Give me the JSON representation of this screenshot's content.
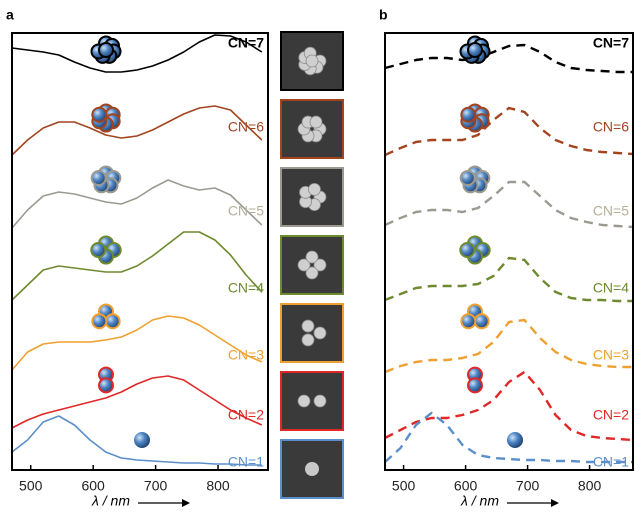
{
  "chart_data": [
    {
      "type": "line",
      "panel_label": "a",
      "x_label": "λ / nm",
      "line_style": "solid",
      "xlim": [
        470,
        880
      ],
      "xticks": [
        500,
        600,
        700,
        800
      ],
      "ylim": [
        0,
        437
      ],
      "x": [
        470,
        495,
        520,
        545,
        570,
        595,
        620,
        645,
        670,
        695,
        720,
        745,
        770,
        795,
        820,
        845,
        870
      ],
      "series": [
        {
          "name": "CN=7",
          "color": "#000000",
          "values": [
            422,
            420,
            418,
            415,
            408,
            402,
            398,
            398,
            400,
            404,
            410,
            418,
            428,
            435,
            434,
            428,
            418
          ]
        },
        {
          "name": "CN=6",
          "color": "#a3441f",
          "values": [
            315,
            330,
            342,
            348,
            348,
            342,
            335,
            332,
            334,
            340,
            348,
            356,
            362,
            364,
            360,
            345,
            330
          ]
        },
        {
          "name": "CN=5",
          "color": "#9c9a90",
          "values": [
            242,
            260,
            274,
            278,
            276,
            272,
            268,
            266,
            272,
            282,
            290,
            284,
            280,
            282,
            275,
            260,
            245
          ]
        },
        {
          "name": "CN=4",
          "color": "#6e8a2e",
          "values": [
            170,
            185,
            200,
            204,
            202,
            200,
            198,
            198,
            204,
            214,
            226,
            238,
            238,
            230,
            215,
            195,
            178
          ]
        },
        {
          "name": "CN=3",
          "color": "#f0a030",
          "values": [
            100,
            118,
            126,
            128,
            128,
            128,
            130,
            133,
            140,
            150,
            154,
            152,
            145,
            135,
            125,
            115,
            108
          ]
        },
        {
          "name": "CN=2",
          "color": "#e02828",
          "values": [
            42,
            50,
            56,
            60,
            64,
            68,
            72,
            78,
            86,
            92,
            94,
            90,
            80,
            70,
            60,
            52,
            45
          ]
        },
        {
          "name": "CN=1",
          "color": "#5b8fcc",
          "values": [
            18,
            30,
            48,
            54,
            45,
            30,
            18,
            12,
            10,
            9,
            8,
            7,
            7,
            6,
            6,
            5,
            5
          ]
        }
      ]
    },
    {
      "type": "line",
      "panel_label": "b",
      "x_label": "λ / nm",
      "line_style": "dashed",
      "xlim": [
        470,
        870
      ],
      "xticks": [
        500,
        600,
        700,
        800
      ],
      "ylim": [
        0,
        437
      ],
      "x": [
        470,
        495,
        520,
        545,
        570,
        595,
        620,
        645,
        670,
        695,
        720,
        745,
        770,
        795,
        820,
        845,
        870
      ],
      "series": [
        {
          "name": "CN=7",
          "color": "#000000",
          "values": [
            402,
            406,
            410,
            412,
            412,
            410,
            412,
            418,
            424,
            425,
            418,
            408,
            402,
            400,
            399,
            398,
            398
          ]
        },
        {
          "name": "CN=6",
          "color": "#a3441f",
          "values": [
            315,
            322,
            328,
            330,
            330,
            330,
            335,
            350,
            362,
            358,
            342,
            330,
            324,
            320,
            318,
            317,
            316
          ]
        },
        {
          "name": "CN=5",
          "color": "#9c9a90",
          "values": [
            245,
            252,
            258,
            260,
            260,
            258,
            262,
            274,
            288,
            288,
            274,
            260,
            252,
            248,
            245,
            244,
            243
          ]
        },
        {
          "name": "CN=4",
          "color": "#6e8a2e",
          "values": [
            170,
            176,
            182,
            184,
            184,
            184,
            186,
            194,
            212,
            210,
            192,
            178,
            172,
            170,
            170,
            169,
            169
          ]
        },
        {
          "name": "CN=3",
          "color": "#f0a030",
          "values": [
            98,
            104,
            108,
            110,
            110,
            112,
            116,
            128,
            148,
            150,
            132,
            118,
            110,
            106,
            104,
            103,
            103
          ]
        },
        {
          "name": "CN=2",
          "color": "#e02828",
          "values": [
            32,
            40,
            48,
            52,
            52,
            55,
            60,
            70,
            88,
            98,
            80,
            55,
            40,
            34,
            32,
            31,
            30
          ]
        },
        {
          "name": "CN=1",
          "color": "#5b8fcc",
          "values": [
            8,
            22,
            45,
            57,
            45,
            25,
            15,
            12,
            11,
            10,
            10,
            9,
            9,
            8,
            8,
            8,
            8
          ]
        }
      ]
    }
  ]
}
